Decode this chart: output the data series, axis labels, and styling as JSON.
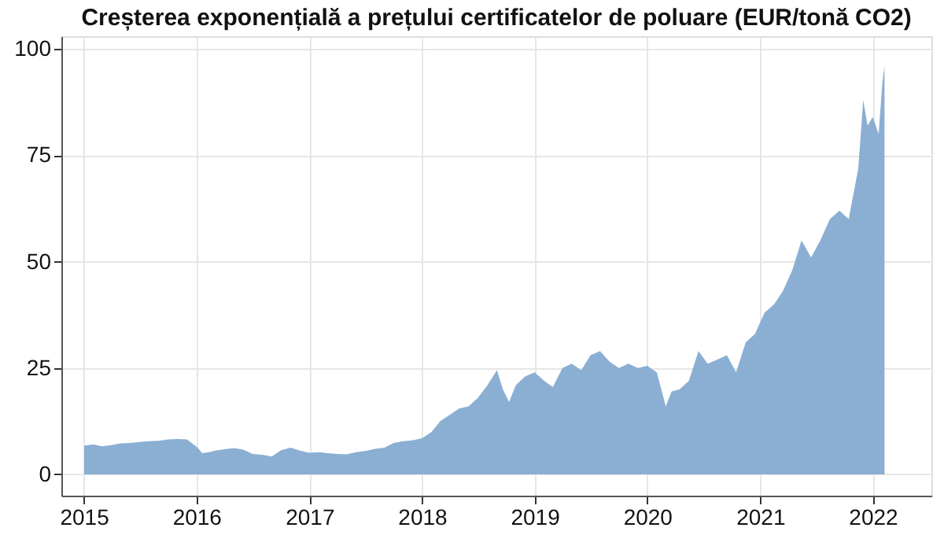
{
  "chart_data": {
    "type": "area",
    "title": "Creșterea exponențială a prețului certificatelor de poluare (EUR/tonă CO2)",
    "x": [
      "2015-01-02",
      "2015-02-01",
      "2015-03-01",
      "2015-04-01",
      "2015-05-01",
      "2015-06-01",
      "2015-07-01",
      "2015-08-01",
      "2015-09-01",
      "2015-10-01",
      "2015-11-01",
      "2015-12-01",
      "2016-01-01",
      "2016-01-20",
      "2016-02-10",
      "2016-03-01",
      "2016-04-01",
      "2016-05-01",
      "2016-06-01",
      "2016-07-01",
      "2016-08-01",
      "2016-09-01",
      "2016-10-01",
      "2016-11-01",
      "2016-12-01",
      "2017-01-01",
      "2017-02-01",
      "2017-03-01",
      "2017-04-01",
      "2017-05-01",
      "2017-06-01",
      "2017-07-01",
      "2017-08-01",
      "2017-09-01",
      "2017-10-01",
      "2017-11-01",
      "2017-12-01",
      "2018-01-01",
      "2018-02-01",
      "2018-03-01",
      "2018-04-01",
      "2018-05-01",
      "2018-06-01",
      "2018-07-01",
      "2018-08-01",
      "2018-09-01",
      "2018-09-20",
      "2018-10-10",
      "2018-11-01",
      "2018-12-01",
      "2019-01-01",
      "2019-02-01",
      "2019-03-01",
      "2019-04-01",
      "2019-05-01",
      "2019-06-01",
      "2019-07-01",
      "2019-08-01",
      "2019-09-01",
      "2019-10-01",
      "2019-11-01",
      "2019-12-01",
      "2020-01-01",
      "2020-02-01",
      "2020-03-01",
      "2020-03-20",
      "2020-04-15",
      "2020-05-15",
      "2020-06-15",
      "2020-07-15",
      "2020-08-15",
      "2020-09-15",
      "2020-10-15",
      "2020-11-15",
      "2020-12-15",
      "2021-01-15",
      "2021-02-15",
      "2021-03-15",
      "2021-04-15",
      "2021-05-15",
      "2021-06-15",
      "2021-07-15",
      "2021-08-15",
      "2021-09-15",
      "2021-10-15",
      "2021-11-15",
      "2021-12-01",
      "2021-12-15",
      "2022-01-01",
      "2022-01-20",
      "2022-02-01",
      "2022-02-08"
    ],
    "series": [
      {
        "color": "#8aafd3",
        "values": [
          6.8,
          7,
          6.6,
          6.9,
          7.3,
          7.4,
          7.6,
          7.8,
          7.9,
          8.2,
          8.3,
          8.2,
          6.5,
          5,
          5.2,
          5.6,
          5.9,
          6.2,
          5.8,
          4.8,
          4.6,
          4.2,
          5.7,
          6.3,
          5.6,
          5.1,
          5.2,
          5,
          4.8,
          4.7,
          5.2,
          5.5,
          6,
          6.3,
          7.4,
          7.8,
          8,
          8.5,
          10,
          12.5,
          14,
          15.5,
          16,
          18,
          21,
          24.5,
          20,
          17,
          21,
          23,
          24,
          22,
          20.5,
          25,
          26,
          24.5,
          28,
          29,
          26.5,
          25,
          26,
          25,
          25.5,
          24,
          16,
          19.5,
          20,
          22,
          29,
          26,
          27,
          28,
          24,
          31,
          33,
          38,
          40,
          43,
          48,
          55,
          51,
          55,
          60,
          62,
          60,
          72,
          88,
          82,
          84,
          80,
          92,
          96
        ]
      }
    ],
    "xlim": [
      "2014-10-20",
      "2022-07-10"
    ],
    "xticks": [
      {
        "value": "2015-01-01",
        "label": "2015"
      },
      {
        "value": "2016-01-01",
        "label": "2016"
      },
      {
        "value": "2017-01-01",
        "label": "2017"
      },
      {
        "value": "2018-01-01",
        "label": "2018"
      },
      {
        "value": "2019-01-01",
        "label": "2019"
      },
      {
        "value": "2020-01-01",
        "label": "2020"
      },
      {
        "value": "2021-01-01",
        "label": "2021"
      },
      {
        "value": "2022-01-01",
        "label": "2022"
      }
    ],
    "ylim": [
      -5,
      103
    ],
    "yticks": [
      0,
      25,
      50,
      75,
      100
    ],
    "grid": true
  }
}
